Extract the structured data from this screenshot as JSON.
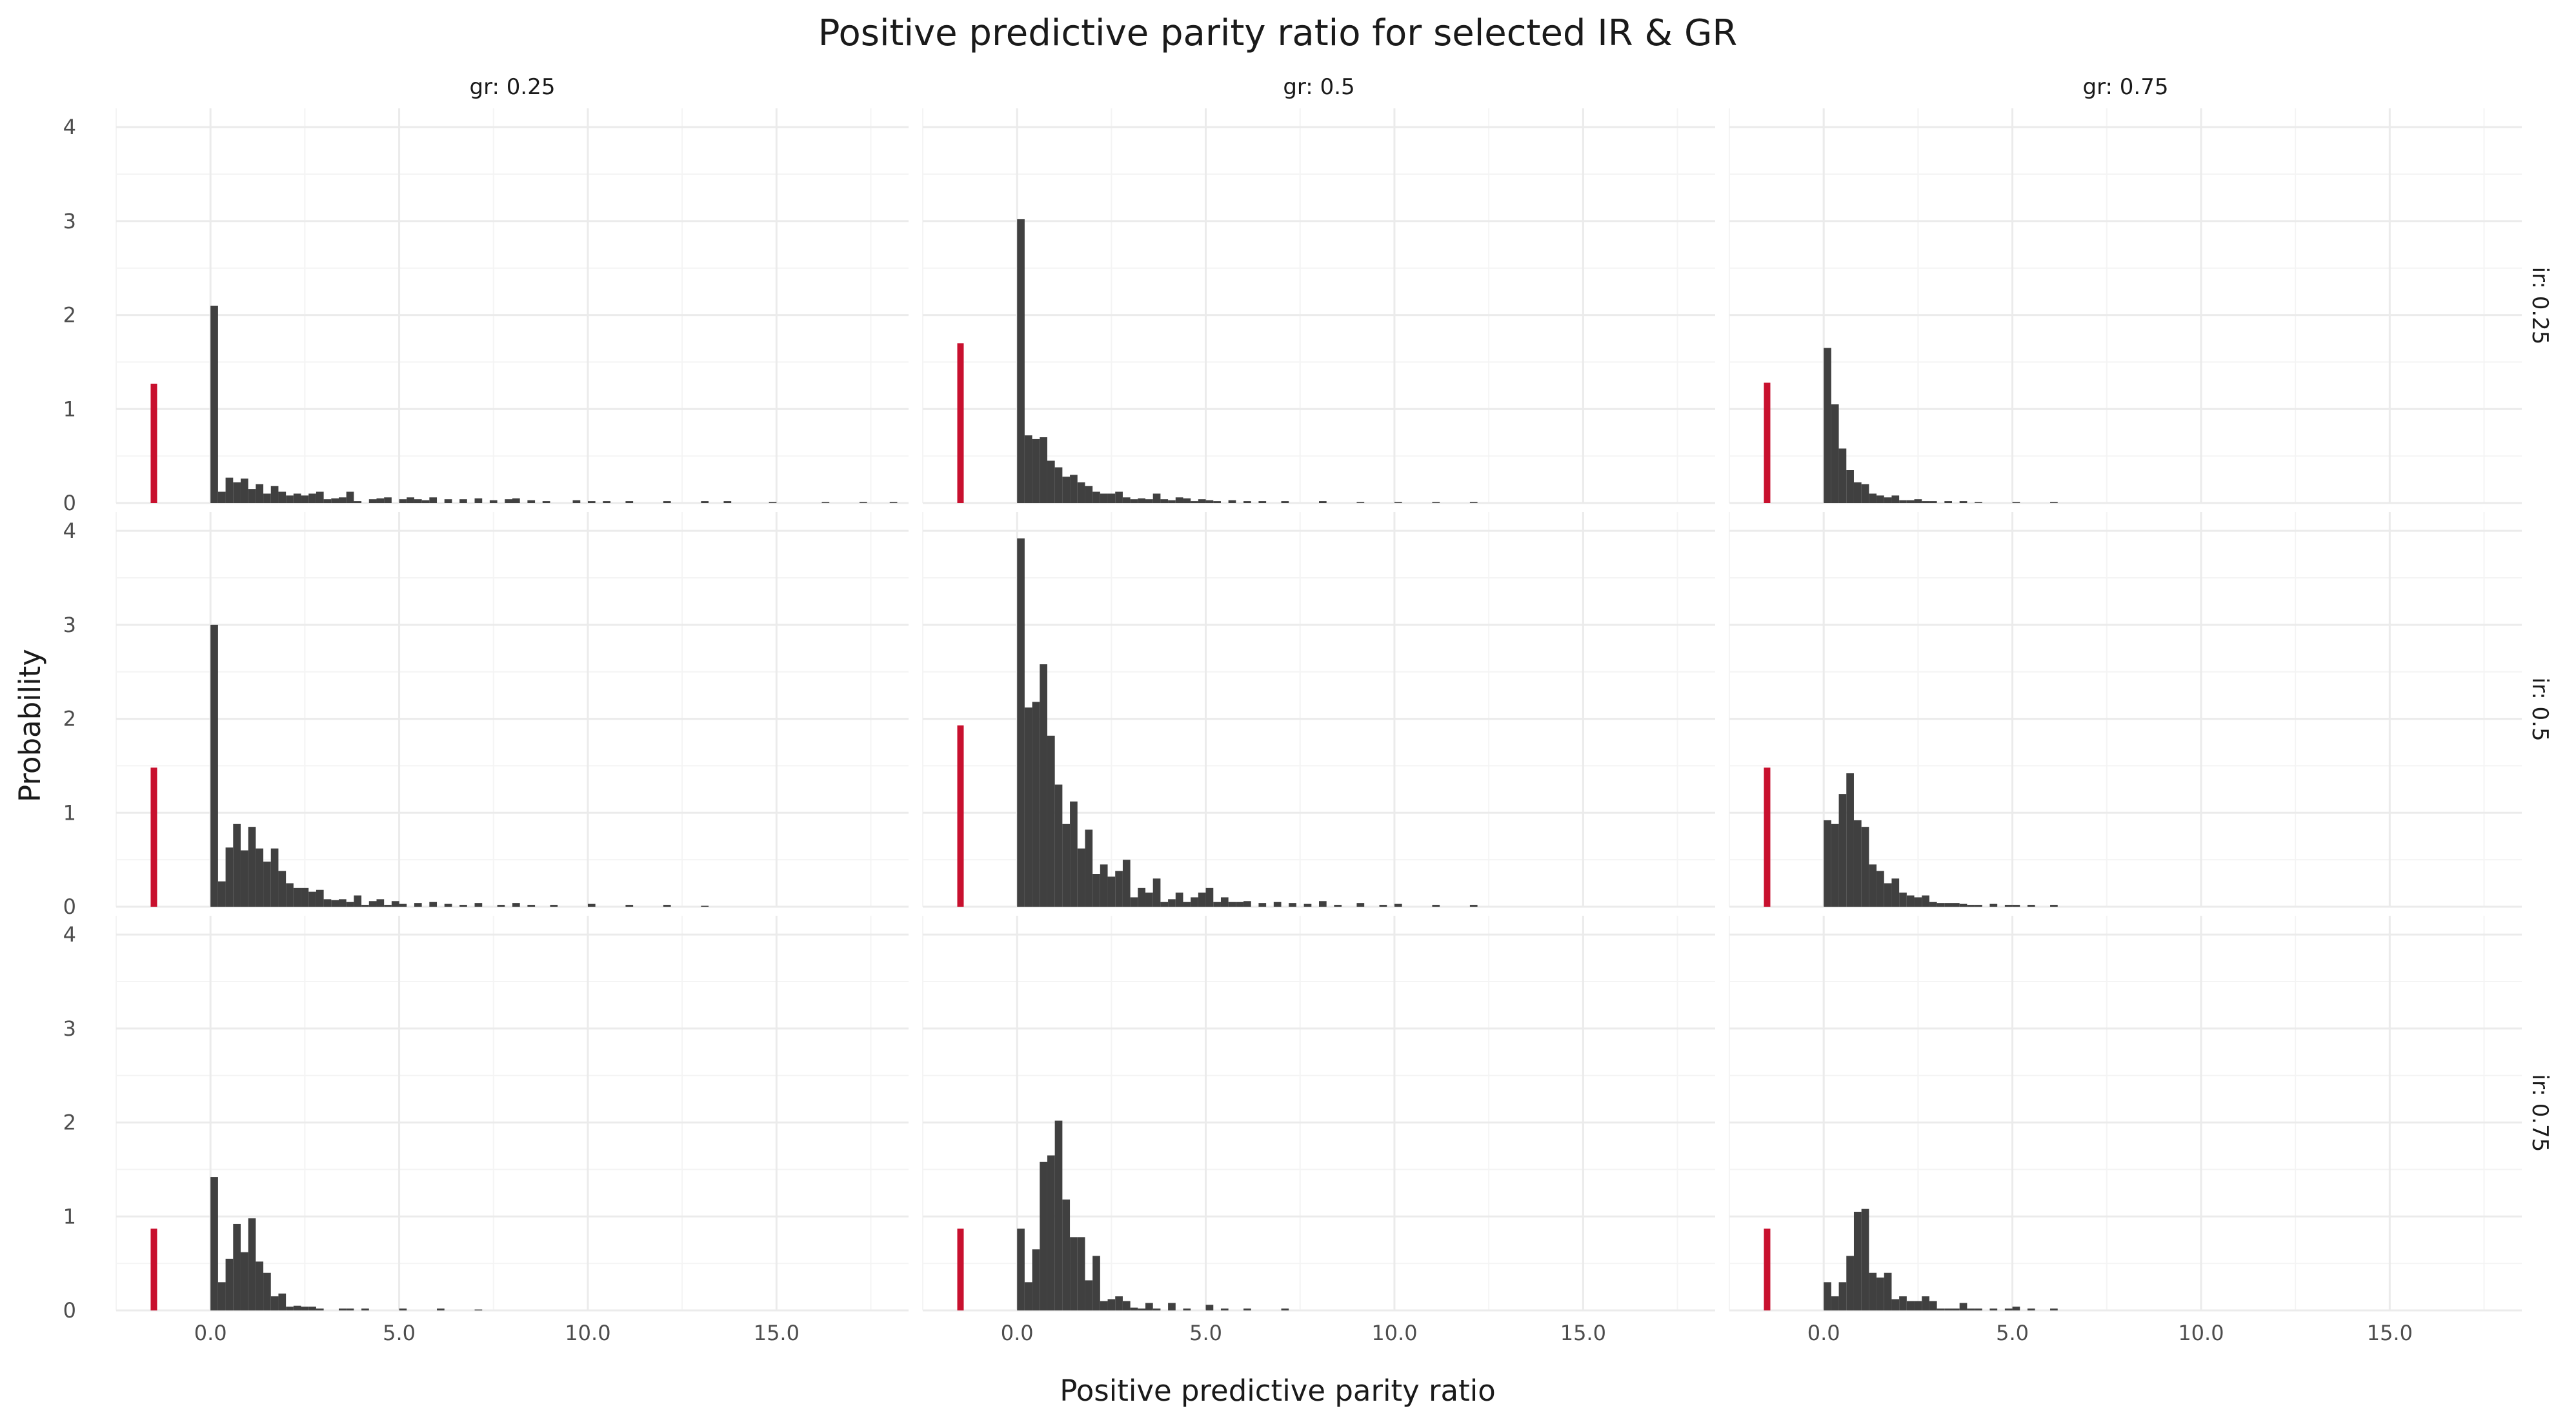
{
  "chart_data": {
    "type": "bar",
    "title": "Positive predictive parity ratio for selected IR & GR",
    "xlabel": "Positive predictive parity ratio",
    "ylabel": "Probability",
    "xlim": [
      -2.5,
      18.5
    ],
    "ylim": [
      0,
      4.2
    ],
    "x_ticks": [
      0,
      5,
      10,
      15
    ],
    "x_tick_labels": [
      "0.0",
      "5.0",
      "10.0",
      "15.0"
    ],
    "y_ticks": [
      0,
      1,
      2,
      3,
      4
    ],
    "y_tick_labels": [
      "0",
      "1",
      "2",
      "3",
      "4"
    ],
    "grid": true,
    "bin_width": 0.2,
    "col_labels": [
      "gr: 0.25",
      "gr: 0.5",
      "gr: 0.75"
    ],
    "row_labels": [
      "ir: 0.25",
      "ir: 0.5",
      "ir: 0.75"
    ],
    "colors": {
      "histogram": "#404040",
      "reference": "#c8102e",
      "grid": "#ebebeb"
    },
    "reference_x": -1.5,
    "panels": [
      {
        "row": "ir: 0.25",
        "col": "gr: 0.25",
        "reference_value": 1.27,
        "bins": [
          [
            0.0,
            2.1
          ],
          [
            0.2,
            0.12
          ],
          [
            0.4,
            0.27
          ],
          [
            0.6,
            0.22
          ],
          [
            0.8,
            0.26
          ],
          [
            1.0,
            0.15
          ],
          [
            1.2,
            0.2
          ],
          [
            1.4,
            0.1
          ],
          [
            1.6,
            0.18
          ],
          [
            1.8,
            0.12
          ],
          [
            2.0,
            0.08
          ],
          [
            2.2,
            0.1
          ],
          [
            2.4,
            0.08
          ],
          [
            2.6,
            0.1
          ],
          [
            2.8,
            0.12
          ],
          [
            3.0,
            0.04
          ],
          [
            3.2,
            0.05
          ],
          [
            3.4,
            0.06
          ],
          [
            3.6,
            0.12
          ],
          [
            3.8,
            0.02
          ],
          [
            4.2,
            0.04
          ],
          [
            4.4,
            0.05
          ],
          [
            4.6,
            0.06
          ],
          [
            5.0,
            0.04
          ],
          [
            5.2,
            0.06
          ],
          [
            5.4,
            0.04
          ],
          [
            5.6,
            0.03
          ],
          [
            5.8,
            0.06
          ],
          [
            6.2,
            0.04
          ],
          [
            6.6,
            0.04
          ],
          [
            7.0,
            0.05
          ],
          [
            7.4,
            0.03
          ],
          [
            7.8,
            0.04
          ],
          [
            8.0,
            0.05
          ],
          [
            8.4,
            0.03
          ],
          [
            8.8,
            0.02
          ],
          [
            9.6,
            0.03
          ],
          [
            10.0,
            0.02
          ],
          [
            10.4,
            0.02
          ],
          [
            11.0,
            0.02
          ],
          [
            12.0,
            0.02
          ],
          [
            13.0,
            0.02
          ],
          [
            13.6,
            0.02
          ],
          [
            14.8,
            0.01
          ],
          [
            16.2,
            0.01
          ],
          [
            17.2,
            0.01
          ],
          [
            18.0,
            0.01
          ]
        ]
      },
      {
        "row": "ir: 0.25",
        "col": "gr: 0.5",
        "reference_value": 1.7,
        "bins": [
          [
            0.0,
            3.02
          ],
          [
            0.2,
            0.72
          ],
          [
            0.4,
            0.68
          ],
          [
            0.6,
            0.7
          ],
          [
            0.8,
            0.45
          ],
          [
            1.0,
            0.38
          ],
          [
            1.2,
            0.28
          ],
          [
            1.4,
            0.3
          ],
          [
            1.6,
            0.22
          ],
          [
            1.8,
            0.18
          ],
          [
            2.0,
            0.12
          ],
          [
            2.2,
            0.1
          ],
          [
            2.4,
            0.1
          ],
          [
            2.6,
            0.12
          ],
          [
            2.8,
            0.06
          ],
          [
            3.0,
            0.04
          ],
          [
            3.2,
            0.05
          ],
          [
            3.4,
            0.04
          ],
          [
            3.6,
            0.1
          ],
          [
            3.8,
            0.04
          ],
          [
            4.0,
            0.03
          ],
          [
            4.2,
            0.06
          ],
          [
            4.4,
            0.05
          ],
          [
            4.6,
            0.02
          ],
          [
            4.8,
            0.04
          ],
          [
            5.0,
            0.03
          ],
          [
            5.2,
            0.02
          ],
          [
            5.6,
            0.03
          ],
          [
            6.0,
            0.02
          ],
          [
            6.4,
            0.02
          ],
          [
            7.0,
            0.02
          ],
          [
            8.0,
            0.02
          ],
          [
            9.0,
            0.01
          ],
          [
            10.0,
            0.01
          ],
          [
            11.0,
            0.01
          ],
          [
            12.0,
            0.01
          ]
        ]
      },
      {
        "row": "ir: 0.25",
        "col": "gr: 0.75",
        "reference_value": 1.28,
        "bins": [
          [
            0.0,
            1.65
          ],
          [
            0.2,
            1.05
          ],
          [
            0.4,
            0.58
          ],
          [
            0.6,
            0.35
          ],
          [
            0.8,
            0.22
          ],
          [
            1.0,
            0.2
          ],
          [
            1.2,
            0.1
          ],
          [
            1.4,
            0.08
          ],
          [
            1.6,
            0.06
          ],
          [
            1.8,
            0.08
          ],
          [
            2.0,
            0.03
          ],
          [
            2.2,
            0.03
          ],
          [
            2.4,
            0.04
          ],
          [
            2.6,
            0.02
          ],
          [
            2.8,
            0.02
          ],
          [
            3.2,
            0.02
          ],
          [
            3.6,
            0.02
          ],
          [
            4.0,
            0.01
          ],
          [
            5.0,
            0.01
          ],
          [
            6.0,
            0.01
          ]
        ]
      },
      {
        "row": "ir: 0.5",
        "col": "gr: 0.25",
        "reference_value": 1.48,
        "bins": [
          [
            0.0,
            3.0
          ],
          [
            0.2,
            0.27
          ],
          [
            0.4,
            0.63
          ],
          [
            0.6,
            0.88
          ],
          [
            0.8,
            0.6
          ],
          [
            1.0,
            0.85
          ],
          [
            1.2,
            0.62
          ],
          [
            1.4,
            0.48
          ],
          [
            1.6,
            0.62
          ],
          [
            1.8,
            0.38
          ],
          [
            2.0,
            0.25
          ],
          [
            2.2,
            0.2
          ],
          [
            2.4,
            0.2
          ],
          [
            2.6,
            0.16
          ],
          [
            2.8,
            0.18
          ],
          [
            3.0,
            0.08
          ],
          [
            3.2,
            0.07
          ],
          [
            3.4,
            0.08
          ],
          [
            3.6,
            0.05
          ],
          [
            3.8,
            0.12
          ],
          [
            4.0,
            0.02
          ],
          [
            4.2,
            0.06
          ],
          [
            4.4,
            0.08
          ],
          [
            4.6,
            0.02
          ],
          [
            4.8,
            0.06
          ],
          [
            5.0,
            0.03
          ],
          [
            5.4,
            0.04
          ],
          [
            5.8,
            0.05
          ],
          [
            6.2,
            0.03
          ],
          [
            6.6,
            0.02
          ],
          [
            7.0,
            0.04
          ],
          [
            7.6,
            0.02
          ],
          [
            8.0,
            0.04
          ],
          [
            8.4,
            0.02
          ],
          [
            9.0,
            0.02
          ],
          [
            10.0,
            0.03
          ],
          [
            11.0,
            0.02
          ],
          [
            12.0,
            0.02
          ],
          [
            13.0,
            0.01
          ]
        ]
      },
      {
        "row": "ir: 0.5",
        "col": "gr: 0.5",
        "reference_value": 1.93,
        "bins": [
          [
            0.0,
            3.92
          ],
          [
            0.2,
            2.12
          ],
          [
            0.4,
            2.18
          ],
          [
            0.6,
            2.58
          ],
          [
            0.8,
            1.82
          ],
          [
            1.0,
            1.3
          ],
          [
            1.2,
            0.88
          ],
          [
            1.4,
            1.12
          ],
          [
            1.6,
            0.62
          ],
          [
            1.8,
            0.82
          ],
          [
            2.0,
            0.35
          ],
          [
            2.2,
            0.45
          ],
          [
            2.4,
            0.32
          ],
          [
            2.6,
            0.38
          ],
          [
            2.8,
            0.5
          ],
          [
            3.0,
            0.1
          ],
          [
            3.2,
            0.2
          ],
          [
            3.4,
            0.15
          ],
          [
            3.6,
            0.3
          ],
          [
            3.8,
            0.05
          ],
          [
            4.0,
            0.08
          ],
          [
            4.2,
            0.15
          ],
          [
            4.4,
            0.05
          ],
          [
            4.6,
            0.1
          ],
          [
            4.8,
            0.15
          ],
          [
            5.0,
            0.2
          ],
          [
            5.2,
            0.05
          ],
          [
            5.4,
            0.1
          ],
          [
            5.6,
            0.05
          ],
          [
            5.8,
            0.05
          ],
          [
            6.0,
            0.06
          ],
          [
            6.4,
            0.04
          ],
          [
            6.8,
            0.05
          ],
          [
            7.2,
            0.04
          ],
          [
            7.6,
            0.03
          ],
          [
            8.0,
            0.06
          ],
          [
            8.4,
            0.02
          ],
          [
            9.0,
            0.04
          ],
          [
            9.6,
            0.02
          ],
          [
            10.0,
            0.03
          ],
          [
            11.0,
            0.02
          ],
          [
            12.0,
            0.02
          ]
        ]
      },
      {
        "row": "ir: 0.5",
        "col": "gr: 0.75",
        "reference_value": 1.48,
        "bins": [
          [
            0.0,
            0.92
          ],
          [
            0.2,
            0.88
          ],
          [
            0.4,
            1.2
          ],
          [
            0.6,
            1.42
          ],
          [
            0.8,
            0.92
          ],
          [
            1.0,
            0.85
          ],
          [
            1.2,
            0.45
          ],
          [
            1.4,
            0.38
          ],
          [
            1.6,
            0.25
          ],
          [
            1.8,
            0.3
          ],
          [
            2.0,
            0.15
          ],
          [
            2.2,
            0.12
          ],
          [
            2.4,
            0.1
          ],
          [
            2.6,
            0.12
          ],
          [
            2.8,
            0.05
          ],
          [
            3.0,
            0.04
          ],
          [
            3.2,
            0.04
          ],
          [
            3.4,
            0.04
          ],
          [
            3.6,
            0.03
          ],
          [
            3.8,
            0.02
          ],
          [
            4.0,
            0.02
          ],
          [
            4.4,
            0.03
          ],
          [
            4.8,
            0.02
          ],
          [
            5.0,
            0.02
          ],
          [
            5.4,
            0.02
          ],
          [
            6.0,
            0.02
          ]
        ]
      },
      {
        "row": "ir: 0.75",
        "col": "gr: 0.25",
        "reference_value": 0.87,
        "bins": [
          [
            0.0,
            1.42
          ],
          [
            0.2,
            0.3
          ],
          [
            0.4,
            0.55
          ],
          [
            0.6,
            0.92
          ],
          [
            0.8,
            0.62
          ],
          [
            1.0,
            0.98
          ],
          [
            1.2,
            0.52
          ],
          [
            1.4,
            0.4
          ],
          [
            1.6,
            0.15
          ],
          [
            1.8,
            0.18
          ],
          [
            2.0,
            0.04
          ],
          [
            2.2,
            0.05
          ],
          [
            2.4,
            0.04
          ],
          [
            2.6,
            0.04
          ],
          [
            2.8,
            0.02
          ],
          [
            3.4,
            0.02
          ],
          [
            3.6,
            0.02
          ],
          [
            4.0,
            0.02
          ],
          [
            5.0,
            0.02
          ],
          [
            6.0,
            0.02
          ],
          [
            7.0,
            0.01
          ]
        ]
      },
      {
        "row": "ir: 0.75",
        "col": "gr: 0.5",
        "reference_value": 0.87,
        "bins": [
          [
            0.0,
            0.87
          ],
          [
            0.2,
            0.3
          ],
          [
            0.4,
            0.65
          ],
          [
            0.6,
            1.58
          ],
          [
            0.8,
            1.65
          ],
          [
            1.0,
            2.02
          ],
          [
            1.2,
            1.18
          ],
          [
            1.4,
            0.78
          ],
          [
            1.6,
            0.78
          ],
          [
            1.8,
            0.32
          ],
          [
            2.0,
            0.58
          ],
          [
            2.2,
            0.1
          ],
          [
            2.4,
            0.12
          ],
          [
            2.6,
            0.15
          ],
          [
            2.8,
            0.1
          ],
          [
            3.0,
            0.03
          ],
          [
            3.2,
            0.02
          ],
          [
            3.4,
            0.08
          ],
          [
            3.6,
            0.02
          ],
          [
            4.0,
            0.08
          ],
          [
            4.4,
            0.02
          ],
          [
            5.0,
            0.06
          ],
          [
            5.4,
            0.02
          ],
          [
            6.0,
            0.02
          ],
          [
            7.0,
            0.02
          ]
        ]
      },
      {
        "row": "ir: 0.75",
        "col": "gr: 0.75",
        "reference_value": 0.87,
        "bins": [
          [
            0.0,
            0.3
          ],
          [
            0.2,
            0.15
          ],
          [
            0.4,
            0.3
          ],
          [
            0.6,
            0.58
          ],
          [
            0.8,
            1.05
          ],
          [
            1.0,
            1.08
          ],
          [
            1.2,
            0.4
          ],
          [
            1.4,
            0.35
          ],
          [
            1.6,
            0.4
          ],
          [
            1.8,
            0.12
          ],
          [
            2.0,
            0.15
          ],
          [
            2.2,
            0.1
          ],
          [
            2.4,
            0.1
          ],
          [
            2.6,
            0.15
          ],
          [
            2.8,
            0.1
          ],
          [
            3.0,
            0.02
          ],
          [
            3.2,
            0.02
          ],
          [
            3.4,
            0.02
          ],
          [
            3.6,
            0.08
          ],
          [
            3.8,
            0.02
          ],
          [
            4.0,
            0.02
          ],
          [
            4.4,
            0.02
          ],
          [
            4.8,
            0.02
          ],
          [
            5.0,
            0.04
          ],
          [
            5.4,
            0.02
          ],
          [
            6.0,
            0.02
          ]
        ]
      }
    ]
  }
}
